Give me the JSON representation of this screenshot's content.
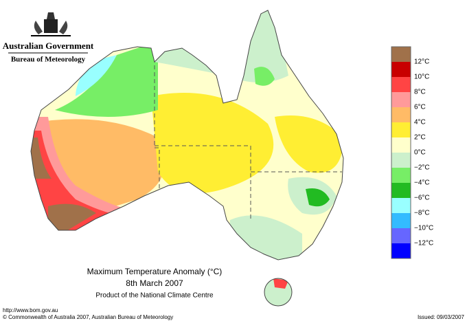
{
  "header": {
    "government": "Australian Government",
    "agency": "Bureau of Meteorology"
  },
  "title": {
    "line1": "Maximum Temperature Anomaly (°C)",
    "line2": "8th March 2007",
    "line3": "Product of the National Climate Centre"
  },
  "legend": {
    "colors": [
      "#a0714a",
      "#c80000",
      "#ff4444",
      "#ff9a9a",
      "#ffbb66",
      "#ffee33",
      "#ffffcc",
      "#ccf0cc",
      "#77ee66",
      "#22bb22",
      "#99ffff",
      "#33bbff",
      "#6666ff",
      "#0000ff"
    ],
    "labels": [
      "12°C",
      "10°C",
      "8°C",
      "6°C",
      "4°C",
      "2°C",
      "0°C",
      "−2°C",
      "−4°C",
      "−6°C",
      "−8°C",
      "−10°C",
      "−12°C"
    ]
  },
  "footer": {
    "url": "http://www.bom.gov.au",
    "copyright": "© Commonwealth of Australia 2007, Australian Bureau of Meteorology",
    "issued": "Issued: 09/03/2007"
  }
}
